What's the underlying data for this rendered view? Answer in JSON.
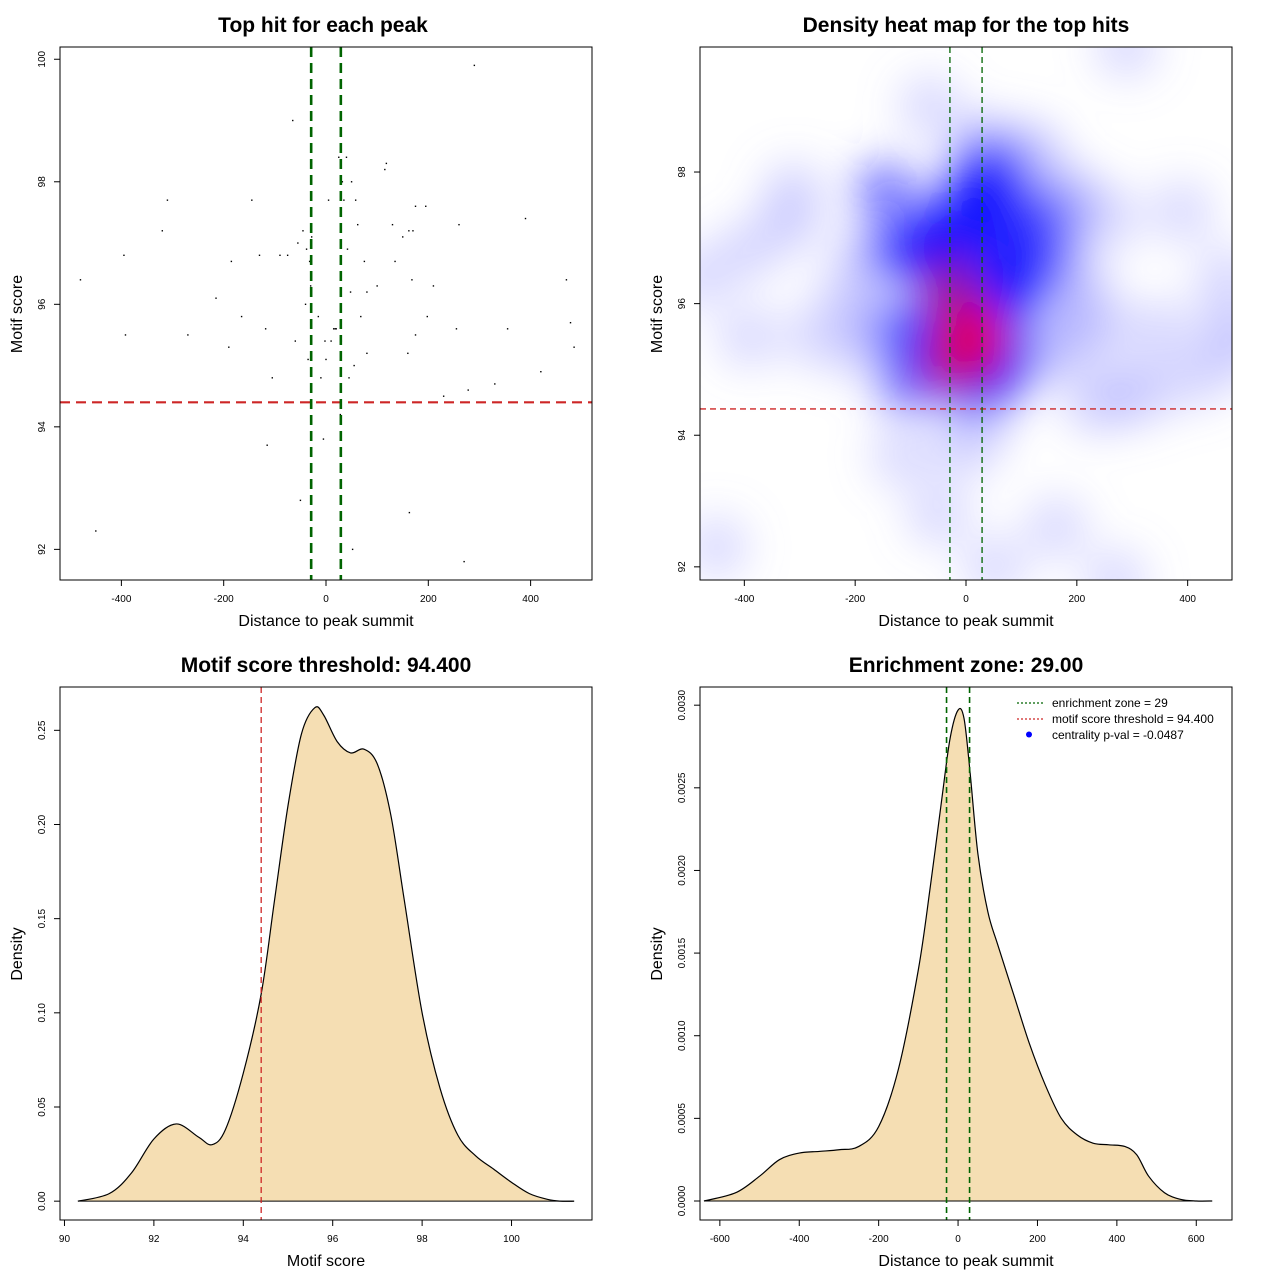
{
  "chart_data": [
    {
      "type": "scatter",
      "title": "Top hit for each peak",
      "xlabel": "Distance to peak summit",
      "ylabel": "Motif score",
      "xlim": [
        -520,
        520
      ],
      "ylim": [
        91.5,
        100.2
      ],
      "xticks": [
        -400,
        -200,
        0,
        200,
        400
      ],
      "yticks": [
        92,
        94,
        96,
        98,
        100
      ],
      "vlines": [
        -29,
        29
      ],
      "hline": 94.4,
      "colors": {
        "vlines": "#006400",
        "hline": "#cd2626",
        "points": "#000000"
      },
      "points": [
        [
          -480,
          96.4
        ],
        [
          -450,
          92.3
        ],
        [
          -395,
          96.8
        ],
        [
          -392,
          95.5
        ],
        [
          -320,
          97.2
        ],
        [
          -310,
          97.7
        ],
        [
          -270,
          95.5
        ],
        [
          -215,
          96.1
        ],
        [
          -190,
          95.3
        ],
        [
          -185,
          96.7
        ],
        [
          -165,
          95.8
        ],
        [
          -145,
          97.7
        ],
        [
          -130,
          96.8
        ],
        [
          -118,
          95.6
        ],
        [
          -115,
          93.7
        ],
        [
          -105,
          94.8
        ],
        [
          -90,
          96.8
        ],
        [
          -75,
          96.8
        ],
        [
          -65,
          99.0
        ],
        [
          -60,
          95.4
        ],
        [
          -55,
          97.0
        ],
        [
          -50,
          92.8
        ],
        [
          -45,
          97.2
        ],
        [
          -40,
          96.0
        ],
        [
          -38,
          96.9
        ],
        [
          -35,
          95.1
        ],
        [
          -32,
          96.7
        ],
        [
          -30,
          96.3
        ],
        [
          -28,
          97.1
        ],
        [
          -15,
          95.8
        ],
        [
          -10,
          94.8
        ],
        [
          -5,
          93.8
        ],
        [
          -2,
          95.4
        ],
        [
          0,
          95.1
        ],
        [
          5,
          97.7
        ],
        [
          10,
          95.4
        ],
        [
          15,
          95.6
        ],
        [
          18,
          95.6
        ],
        [
          20,
          95.6
        ],
        [
          25,
          98.4
        ],
        [
          28,
          94.2
        ],
        [
          30,
          95.4
        ],
        [
          32,
          98.0
        ],
        [
          35,
          97.7
        ],
        [
          40,
          98.4
        ],
        [
          42,
          96.9
        ],
        [
          45,
          94.8
        ],
        [
          48,
          96.2
        ],
        [
          50,
          98.0
        ],
        [
          52,
          92.0
        ],
        [
          55,
          95.0
        ],
        [
          58,
          97.7
        ],
        [
          62,
          97.3
        ],
        [
          68,
          95.8
        ],
        [
          75,
          96.7
        ],
        [
          80,
          95.2
        ],
        [
          80,
          96.2
        ],
        [
          100,
          96.3
        ],
        [
          115,
          98.2
        ],
        [
          118,
          98.3
        ],
        [
          130,
          97.3
        ],
        [
          135,
          96.7
        ],
        [
          150,
          97.1
        ],
        [
          160,
          95.2
        ],
        [
          162,
          97.2
        ],
        [
          163,
          92.6
        ],
        [
          168,
          96.4
        ],
        [
          170,
          97.2
        ],
        [
          175,
          95.5
        ],
        [
          175,
          97.6
        ],
        [
          195,
          97.6
        ],
        [
          198,
          95.8
        ],
        [
          210,
          96.3
        ],
        [
          230,
          94.5
        ],
        [
          255,
          95.6
        ],
        [
          260,
          97.3
        ],
        [
          270,
          91.8
        ],
        [
          278,
          94.6
        ],
        [
          290,
          99.9
        ],
        [
          330,
          94.7
        ],
        [
          355,
          95.6
        ],
        [
          390,
          97.4
        ],
        [
          420,
          94.9
        ],
        [
          470,
          96.4
        ],
        [
          478,
          95.7
        ],
        [
          485,
          95.3
        ]
      ]
    },
    {
      "type": "heatmap",
      "title": "Density heat map for the top hits",
      "xlabel": "Distance to peak summit",
      "ylabel": "Motif score",
      "xlim": [
        -480,
        480
      ],
      "ylim": [
        91.8,
        99.9
      ],
      "xticks": [
        -400,
        -200,
        0,
        200,
        400
      ],
      "yticks": [
        92,
        94,
        96,
        98
      ],
      "vlines": [
        -29,
        29
      ],
      "hline": 94.4,
      "colors": {
        "low": "#ffffff",
        "mid": "#0000ff",
        "high": "#ff0000",
        "vlines": "#006400",
        "hline": "#cd2626"
      }
    },
    {
      "type": "area",
      "title": "Motif score threshold: 94.400",
      "xlabel": "Motif score",
      "ylabel": "Density",
      "xlim": [
        89.9,
        101.8
      ],
      "ylim": [
        -0.01,
        0.273
      ],
      "xticks": [
        90,
        92,
        94,
        96,
        98,
        100
      ],
      "yticks": [
        0.0,
        0.05,
        0.1,
        0.15,
        0.2,
        0.25
      ],
      "ytick_labels": [
        "0.00",
        "0.05",
        "0.10",
        "0.15",
        "0.20",
        "0.25"
      ],
      "vline": 94.4,
      "colors": {
        "fill": "#f5deb3",
        "line": "#000000",
        "vline": "#cd2626"
      },
      "x": [
        90.3,
        91.0,
        91.5,
        92.0,
        92.5,
        93.0,
        93.3,
        93.6,
        94.0,
        94.4,
        94.7,
        95.0,
        95.3,
        95.6,
        95.8,
        96.1,
        96.4,
        96.7,
        97.0,
        97.3,
        97.6,
        98.0,
        98.4,
        98.8,
        99.2,
        99.6,
        100.0,
        100.4,
        100.8,
        101.1,
        101.4
      ],
      "y": [
        0.0,
        0.004,
        0.015,
        0.033,
        0.041,
        0.034,
        0.03,
        0.038,
        0.068,
        0.11,
        0.16,
        0.21,
        0.248,
        0.262,
        0.258,
        0.244,
        0.238,
        0.24,
        0.232,
        0.205,
        0.16,
        0.1,
        0.06,
        0.035,
        0.024,
        0.017,
        0.01,
        0.004,
        0.001,
        0.0,
        0.0
      ]
    },
    {
      "type": "area",
      "title": "Enrichment zone: 29.00",
      "xlabel": "Distance to peak summit",
      "ylabel": "Density",
      "xlim": [
        -650,
        690
      ],
      "ylim": [
        -0.000115,
        0.00311
      ],
      "xticks": [
        -600,
        -400,
        -200,
        0,
        200,
        400,
        600
      ],
      "yticks": [
        0.0,
        0.0005,
        0.001,
        0.0015,
        0.002,
        0.0025,
        0.003
      ],
      "ytick_labels": [
        "0.0000",
        "0.0005",
        "0.0010",
        "0.0015",
        "0.0020",
        "0.0025",
        "0.0030"
      ],
      "vlines": [
        -29,
        29
      ],
      "colors": {
        "fill": "#f5deb3",
        "line": "#000000",
        "vlines": "#006400"
      },
      "x": [
        -640,
        -560,
        -500,
        -450,
        -400,
        -350,
        -300,
        -250,
        -200,
        -150,
        -100,
        -70,
        -40,
        -20,
        0,
        15,
        30,
        50,
        75,
        100,
        140,
        180,
        220,
        260,
        300,
        340,
        380,
        420,
        450,
        480,
        520,
        560,
        600,
        640
      ],
      "y": [
        0.0,
        5e-05,
        0.00015,
        0.00025,
        0.00029,
        0.0003,
        0.00031,
        0.00033,
        0.00045,
        0.0008,
        0.0014,
        0.0019,
        0.00245,
        0.0028,
        0.00297,
        0.00292,
        0.0026,
        0.0021,
        0.00175,
        0.00155,
        0.00125,
        0.00095,
        0.0007,
        0.0005,
        0.0004,
        0.00035,
        0.00034,
        0.00033,
        0.00028,
        0.00015,
        5e-05,
        1e-05,
        0.0,
        0.0
      ],
      "legend": {
        "position": "top-right",
        "items": [
          {
            "label": "enrichment zone = 29",
            "color": "#006400",
            "style": "dotted-line"
          },
          {
            "label": "motif score threshold = 94.400",
            "color": "#cd2626",
            "style": "dotted-line"
          },
          {
            "label": "centrality p-val = -0.0487",
            "color": "#0000ff",
            "style": "point"
          }
        ]
      }
    }
  ]
}
